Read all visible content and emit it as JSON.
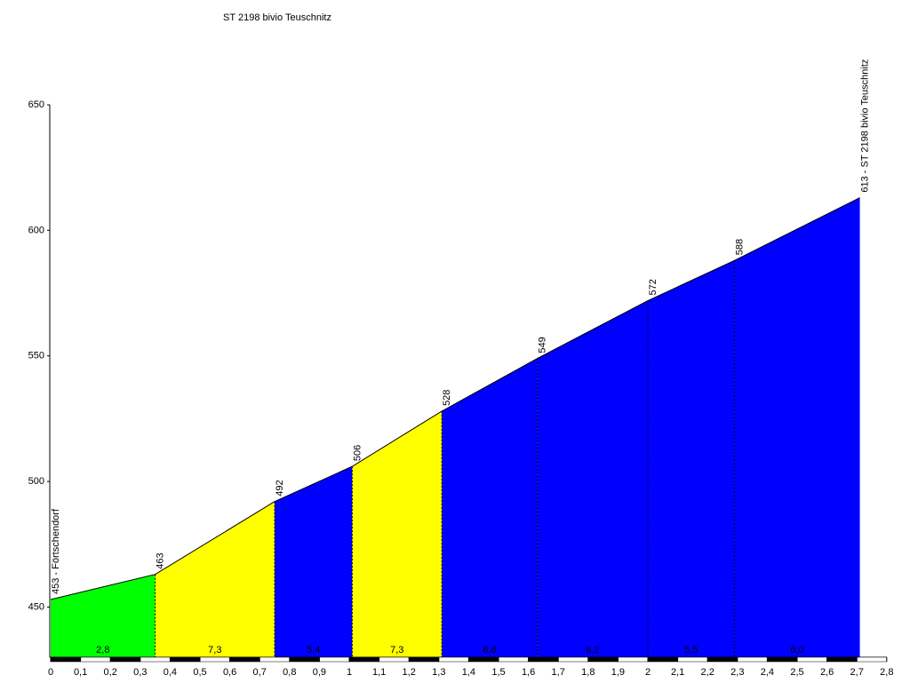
{
  "chart_data": {
    "type": "elevation-profile",
    "title": "ST 2198 bivio Teuschnitz",
    "x": [
      0,
      0.35,
      0.75,
      1.01,
      1.31,
      1.63,
      2.0,
      2.29,
      2.71
    ],
    "values": [
      453,
      463,
      492,
      506,
      528,
      549,
      572,
      588,
      613
    ],
    "point_labels": [
      "453 - Förtschendorf",
      "463",
      "492",
      "506",
      "528",
      "549",
      "572",
      "588",
      "613 - ST 2198 bivio Teuschnitz"
    ],
    "segments": {
      "colors": [
        "#00ff00",
        "#ffff00",
        "#0000ff",
        "#ffff00",
        "#0000ff",
        "#0000ff",
        "#0000ff",
        "#0000ff"
      ],
      "values": [
        2.8,
        7.3,
        5.4,
        7.3,
        6.6,
        6.2,
        5.5,
        6.0
      ],
      "value_labels": [
        "2,8",
        "7,3",
        "5,4",
        "7,3",
        "6,6",
        "6,2",
        "5,5",
        "6,0"
      ]
    },
    "xlim": [
      0,
      2.8
    ],
    "xticks": [
      0,
      {
        "value": 0.1,
        "label": "0,1"
      },
      {
        "value": 0.2,
        "label": "0,2"
      },
      {
        "value": 0.3,
        "label": "0,3"
      },
      {
        "value": 0.4,
        "label": "0,4"
      },
      {
        "value": 0.5,
        "label": "0,5"
      },
      {
        "value": 0.6,
        "label": "0,6"
      },
      {
        "value": 0.7,
        "label": "0,7"
      },
      {
        "value": 0.8,
        "label": "0,8"
      },
      {
        "value": 0.9,
        "label": "0,9"
      },
      1,
      {
        "value": 1.1,
        "label": "1,1"
      },
      {
        "value": 1.2,
        "label": "1,2"
      },
      {
        "value": 1.3,
        "label": "1,3"
      },
      {
        "value": 1.4,
        "label": "1,4"
      },
      {
        "value": 1.5,
        "label": "1,5"
      },
      {
        "value": 1.6,
        "label": "1,6"
      },
      {
        "value": 1.7,
        "label": "1,7"
      },
      {
        "value": 1.8,
        "label": "1,8"
      },
      {
        "value": 1.9,
        "label": "1,9"
      },
      2,
      {
        "value": 2.1,
        "label": "2,1"
      },
      {
        "value": 2.2,
        "label": "2,2"
      },
      {
        "value": 2.3,
        "label": "2,3"
      },
      {
        "value": 2.4,
        "label": "2,4"
      },
      {
        "value": 2.5,
        "label": "2,5"
      },
      {
        "value": 2.6,
        "label": "2,6"
      },
      {
        "value": 2.7,
        "label": "2,7"
      },
      {
        "value": 2.8,
        "label": "2,8"
      }
    ],
    "ylim": [
      430,
      650
    ],
    "yticks": [
      450,
      500,
      550,
      600,
      650
    ]
  }
}
